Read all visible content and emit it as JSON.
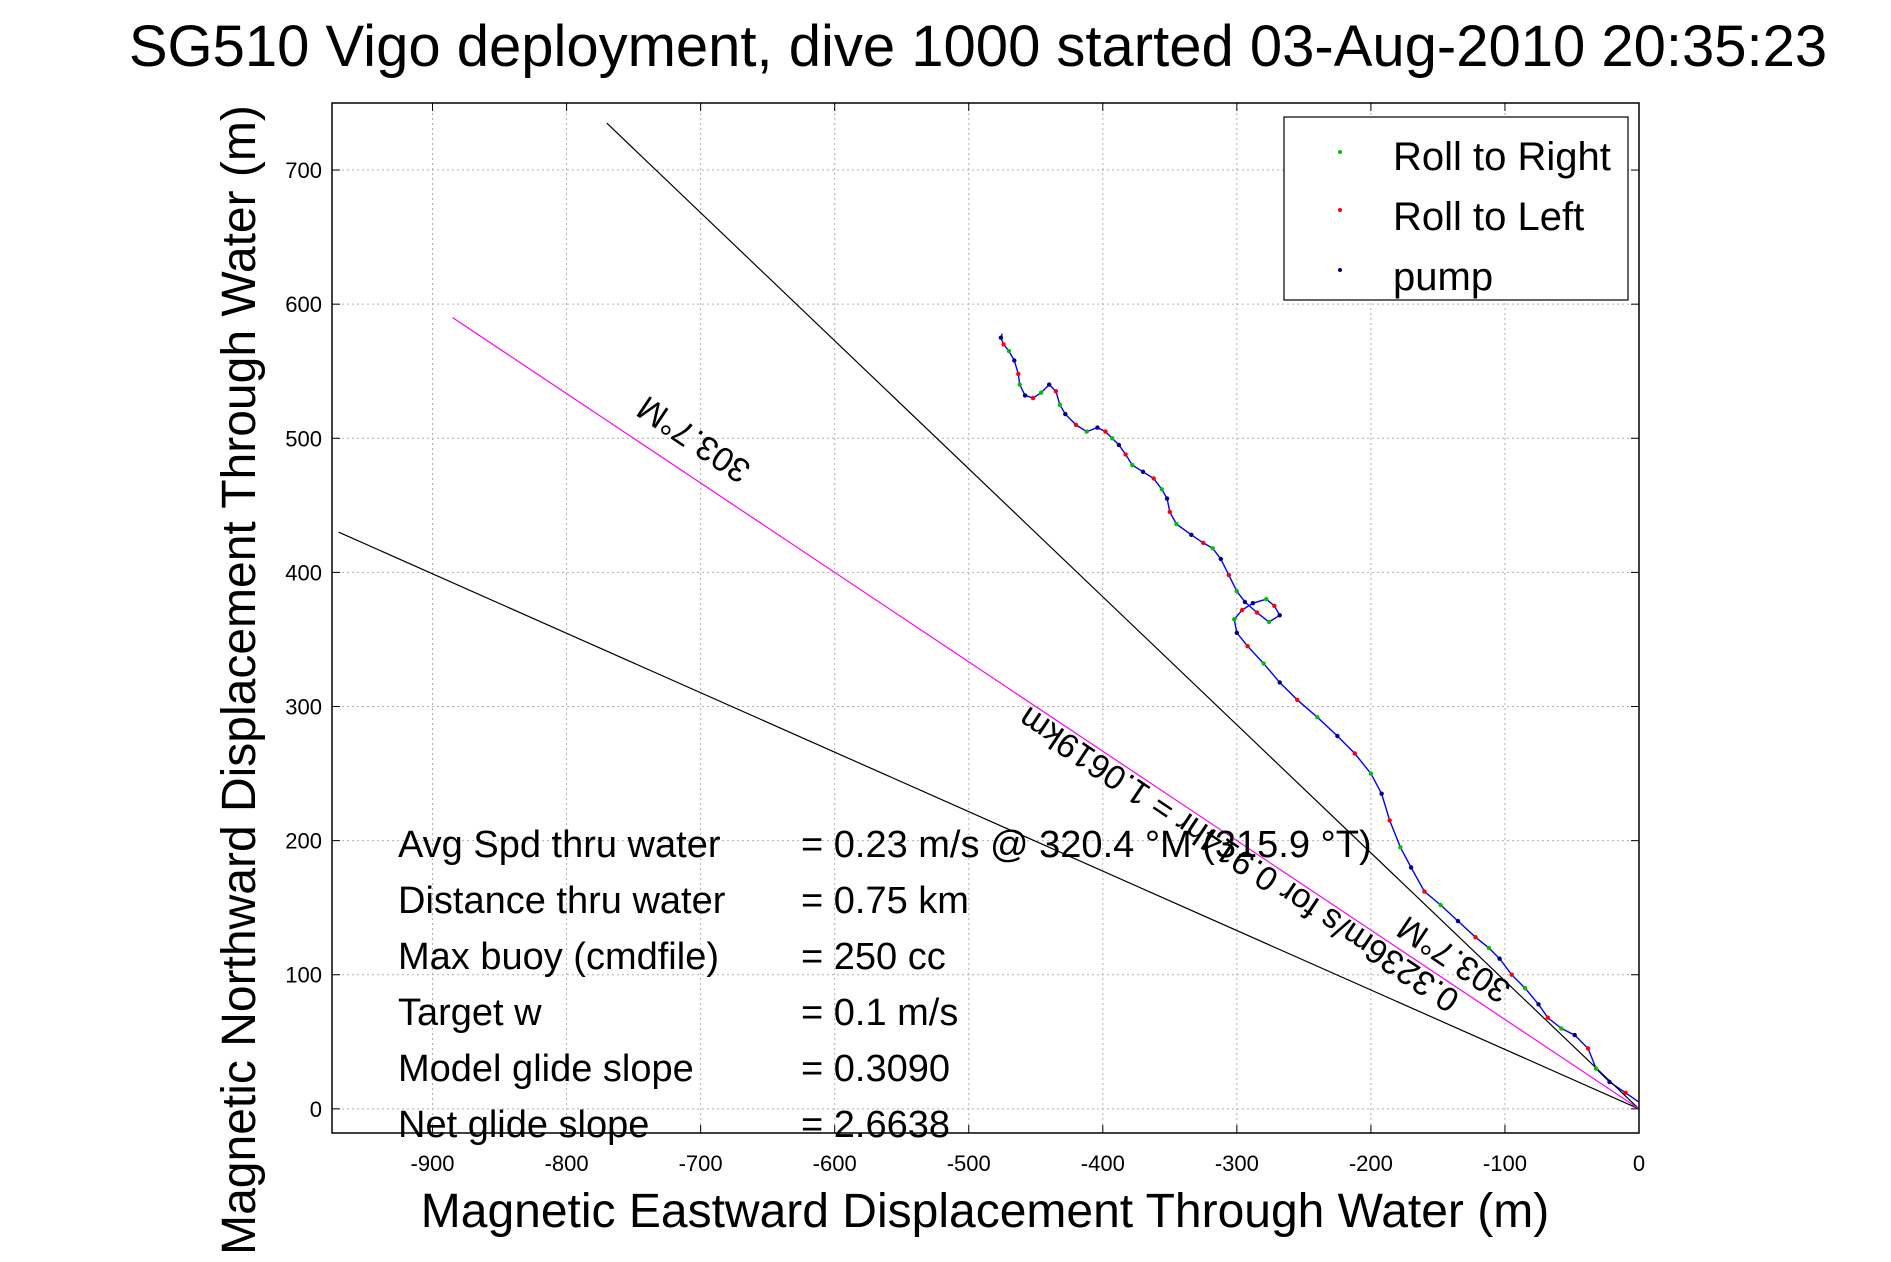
{
  "chart_data": {
    "type": "line",
    "title": "SG510 Vigo deployment, dive 1000 started 03-Aug-2010 20:35:23",
    "xlabel": "Magnetic Eastward Displacement Through Water (m)",
    "ylabel": "Magnetic Northward Displacement Through Water (m)",
    "xlim": [
      -975,
      0
    ],
    "ylim": [
      -18,
      750
    ],
    "xticks": [
      -900,
      -800,
      -700,
      -600,
      -500,
      -400,
      -300,
      -200,
      -100,
      0
    ],
    "xtick_labels": [
      "-900",
      "-800",
      "-700",
      "-600",
      "-500",
      "-400",
      "-300",
      "-200",
      "-100",
      "0"
    ],
    "yticks": [
      0,
      100,
      200,
      300,
      400,
      500,
      600,
      700
    ],
    "ytick_labels": [
      "0",
      "100",
      "200",
      "300",
      "400",
      "500",
      "600",
      "700"
    ],
    "grid": true,
    "legend_position": "top-right",
    "legend": [
      {
        "label": "Roll to Right",
        "color": "#00c000"
      },
      {
        "label": "Roll to Left",
        "color": "#ff0000"
      },
      {
        "label": "pump",
        "color": "#000080"
      }
    ],
    "series": [
      {
        "color": "#0000ff",
        "x": [
          0,
          -10,
          -22,
          -32,
          -38,
          -48,
          -58,
          -68,
          -75,
          -85,
          -95,
          -104,
          -112,
          -122,
          -135,
          -148,
          -160,
          -170,
          -178,
          -186,
          -192,
          -200,
          -212,
          -225,
          -240,
          -255,
          -268,
          -280,
          -292,
          -300,
          -302,
          -296,
          -288,
          -278,
          -272,
          -268,
          -276,
          -285,
          -294,
          -300,
          -306,
          -312,
          -318,
          -325,
          -334,
          -345,
          -350,
          -352,
          -356,
          -362,
          -370,
          -378,
          -383,
          -388,
          -393,
          -398,
          -404,
          -412,
          -420,
          -428,
          -432,
          -435,
          -440,
          -446,
          -452,
          -458,
          -462,
          -463,
          -466,
          -470,
          -474,
          -476,
          -475
        ],
        "y": [
          5,
          12,
          20,
          30,
          45,
          55,
          60,
          68,
          78,
          90,
          100,
          112,
          120,
          128,
          140,
          152,
          162,
          180,
          195,
          215,
          235,
          250,
          265,
          278,
          292,
          305,
          318,
          332,
          345,
          355,
          365,
          372,
          377,
          380,
          375,
          368,
          363,
          370,
          378,
          386,
          398,
          410,
          418,
          422,
          428,
          436,
          445,
          455,
          462,
          470,
          475,
          480,
          488,
          495,
          500,
          505,
          508,
          505,
          510,
          518,
          525,
          535,
          540,
          534,
          530,
          532,
          540,
          548,
          558,
          565,
          570,
          575,
          578
        ]
      },
      {
        "color": "#000000",
        "x": [
          0,
          -970
        ],
        "y": [
          0,
          430
        ]
      },
      {
        "color": "#000000",
        "x": [
          0,
          -770
        ],
        "y": [
          0,
          735
        ]
      },
      {
        "color": "#ff00ff",
        "x": [
          0,
          -885
        ],
        "y": [
          0,
          590
        ]
      }
    ],
    "text_labels": [
      {
        "text": "303.7°M"
      },
      {
        "text": "303.7°M"
      },
      {
        "text": "0.3236m/s for 0.914hr = 1.0619km"
      }
    ],
    "stats": [
      {
        "label": "Avg Spd thru water",
        "value": "=  0.23 m/s @ 320.4 °M (315.9 °T)"
      },
      {
        "label": "Distance thru water",
        "value": "=  0.75 km"
      },
      {
        "label": "Max buoy (cmdfile)",
        "value": "= 250 cc"
      },
      {
        "label": "Target w",
        "value": "= 0.1 m/s"
      },
      {
        "label": "Model glide slope",
        "value": "= 0.3090"
      },
      {
        "label": "Net glide slope",
        "value": "= 2.6638"
      }
    ]
  }
}
